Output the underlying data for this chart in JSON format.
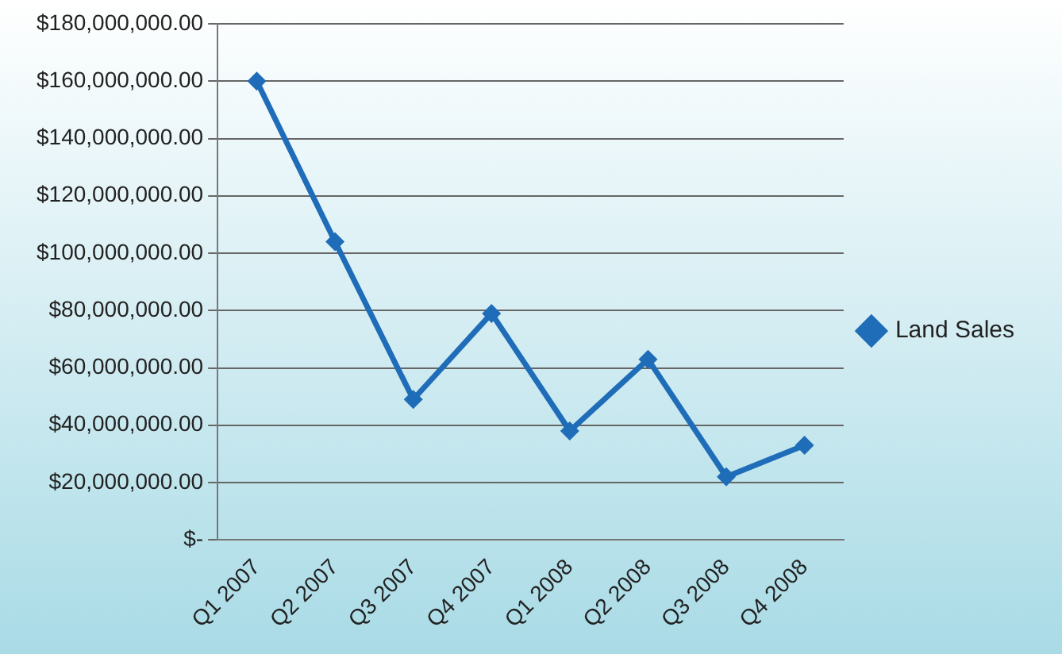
{
  "chart_data": {
    "type": "line",
    "categories": [
      "Q1 2007",
      "Q2 2007",
      "Q3 2007",
      "Q4 2007",
      "Q1 2008",
      "Q2 2008",
      "Q3 2008",
      "Q4 2008"
    ],
    "series": [
      {
        "name": "Land Sales",
        "color": "#1f6db8",
        "values": [
          160000000,
          104000000,
          49000000,
          79000000,
          38000000,
          63000000,
          22000000,
          33000000
        ]
      }
    ],
    "ylim": [
      0,
      180000000
    ],
    "yticks": [
      {
        "value": 0,
        "label": "$-"
      },
      {
        "value": 20000000,
        "label": "$20,000,000.00"
      },
      {
        "value": 40000000,
        "label": "$40,000,000.00"
      },
      {
        "value": 60000000,
        "label": "$60,000,000.00"
      },
      {
        "value": 80000000,
        "label": "$80,000,000.00"
      },
      {
        "value": 100000000,
        "label": "$100,000,000.00"
      },
      {
        "value": 120000000,
        "label": "$120,000,000.00"
      },
      {
        "value": 140000000,
        "label": "$140,000,000.00"
      },
      {
        "value": 160000000,
        "label": "$160,000,000.00"
      },
      {
        "value": 180000000,
        "label": "$180,000,000.00"
      }
    ],
    "grid": "y",
    "legend": "right",
    "marker": "diamond",
    "line_style": "solid"
  }
}
